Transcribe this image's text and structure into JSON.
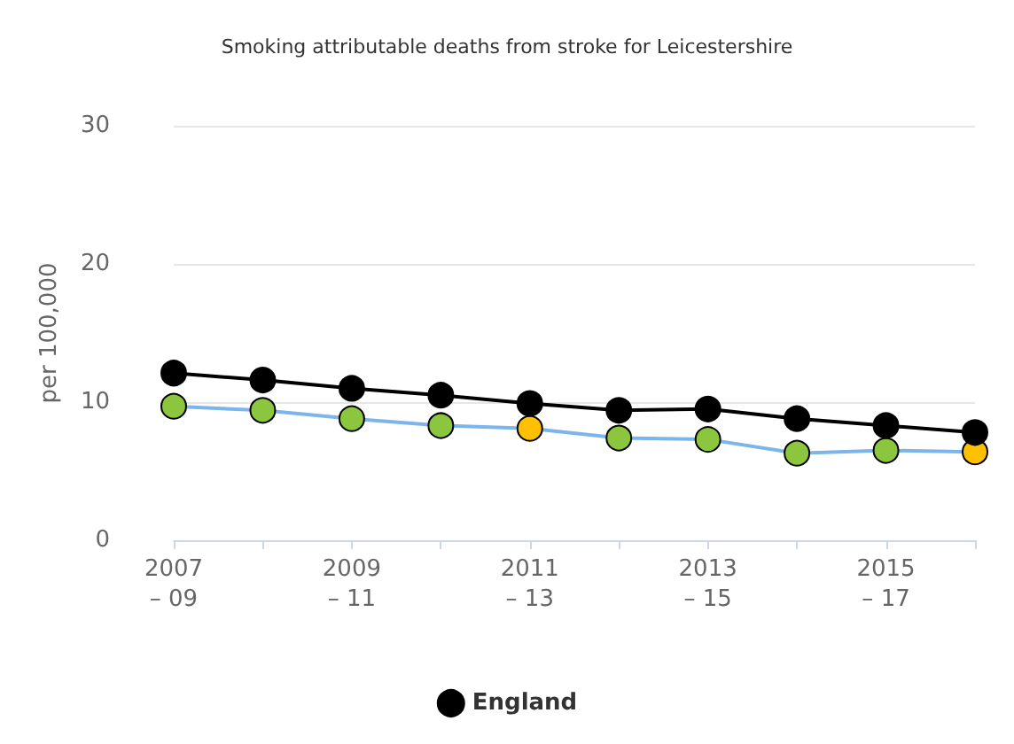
{
  "chart_data": {
    "type": "line",
    "title": "Smoking attributable deaths from stroke for Leicestershire",
    "ylabel": "per 100,000",
    "categories": [
      "2007 – 09",
      null,
      "2009 – 11",
      null,
      "2011 – 13",
      null,
      "2013 – 15",
      null,
      "2015 – 17",
      null
    ],
    "series": [
      {
        "name": "England",
        "color": "#000000",
        "values": [
          12.1,
          11.6,
          11.0,
          10.5,
          9.9,
          9.4,
          9.5,
          8.8,
          8.3,
          7.8
        ]
      },
      {
        "color": "#7cb5ec",
        "colors": [
          "#8cc63e",
          "#8cc63e",
          "#8cc63e",
          "#8cc63e",
          "#ffc000",
          "#8cc63e",
          "#8cc63e",
          "#8cc63e",
          "#8cc63e",
          "#ffc000"
        ],
        "values": [
          9.7,
          9.4,
          8.8,
          8.3,
          8.1,
          7.4,
          7.3,
          6.3,
          6.5,
          6.4
        ]
      }
    ],
    "ylim": [
      0,
      30
    ],
    "yticks": [
      0,
      10,
      20,
      30
    ],
    "grid": "y",
    "legend": "bottom",
    "marker": "circle",
    "line_style": "solid"
  }
}
